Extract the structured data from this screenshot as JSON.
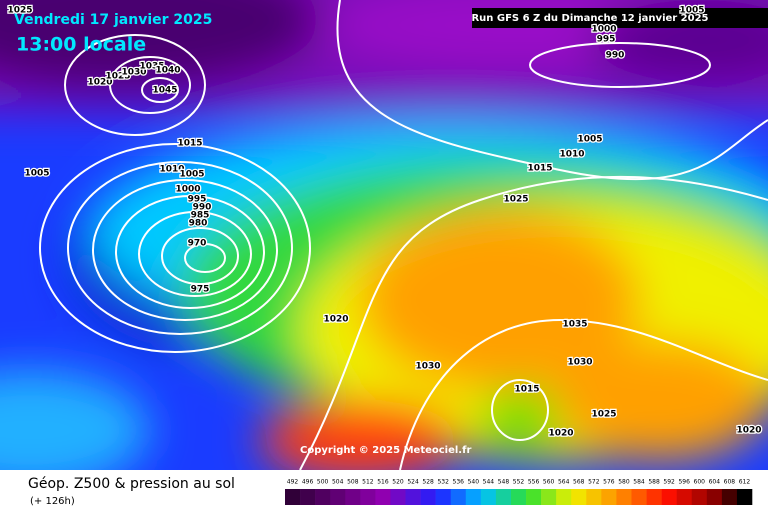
{
  "header": {
    "date": "Vendredi 17 janvier 2025",
    "time": "13:00 locale",
    "run": "Run GFS 6 Z du Dimanche 12 janvier 2025"
  },
  "map": {
    "isobar_labels": [
      1025,
      1020,
      1025,
      1030,
      1035,
      1040,
      1045,
      1015,
      1010,
      1005,
      1005,
      1000,
      995,
      990,
      985,
      980,
      970,
      975,
      1020,
      1015,
      1025,
      1010,
      1005,
      1000,
      995,
      990,
      1005,
      1035,
      1030,
      1030,
      1015,
      1025,
      1020,
      1020
    ],
    "copyright": "Copyright © 2025 Meteociel.fr"
  },
  "legend": {
    "title": "Géop. Z500 & pression au sol",
    "lead": "(+ 126h)",
    "scale": [
      492,
      496,
      500,
      504,
      508,
      512,
      516,
      520,
      524,
      528,
      532,
      536,
      540,
      544,
      548,
      552,
      556,
      560,
      564,
      568,
      572,
      576,
      580,
      584,
      588,
      592,
      596,
      600,
      604,
      608,
      612
    ]
  }
}
